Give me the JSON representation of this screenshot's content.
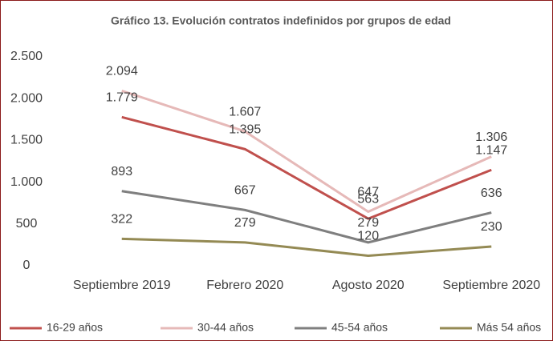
{
  "chart_data": {
    "type": "line",
    "title": "Gráfico 13. Evolución contratos indefinidos por grupos de edad",
    "categories": [
      "Septiembre 2019",
      "Febrero 2020",
      "Agosto 2020",
      "Septiembre 2020"
    ],
    "ylim": [
      0,
      2500
    ],
    "yticks": [
      0,
      500,
      {
        "value": 1000,
        "label": "1.000"
      },
      {
        "value": 1500,
        "label": "1.500"
      },
      {
        "value": 2000,
        "label": "2.000"
      },
      {
        "value": 2500,
        "label": "2.500"
      }
    ],
    "grid": false,
    "legend": "bottom",
    "series": [
      {
        "name": "16-29 años",
        "color": "#c0504d",
        "values": [
          1779,
          1395,
          563,
          1147
        ],
        "value_labels": [
          "1.779",
          "1.395",
          "563",
          "1.147"
        ]
      },
      {
        "name": "30-44 años",
        "color": "#e6b9b8",
        "values": [
          2094,
          1607,
          647,
          1306
        ],
        "value_labels": [
          "2.094",
          "1.607",
          "647",
          "1.306"
        ]
      },
      {
        "name": "45-54 años",
        "color": "#7f7f7f",
        "values": [
          893,
          667,
          279,
          636
        ],
        "value_labels": [
          "893",
          "667",
          "279",
          "636"
        ]
      },
      {
        "name": "Más 54 años",
        "color": "#948a54",
        "values": [
          322,
          279,
          120,
          230
        ],
        "value_labels": [
          "322",
          "279",
          "120",
          "230"
        ]
      }
    ]
  }
}
